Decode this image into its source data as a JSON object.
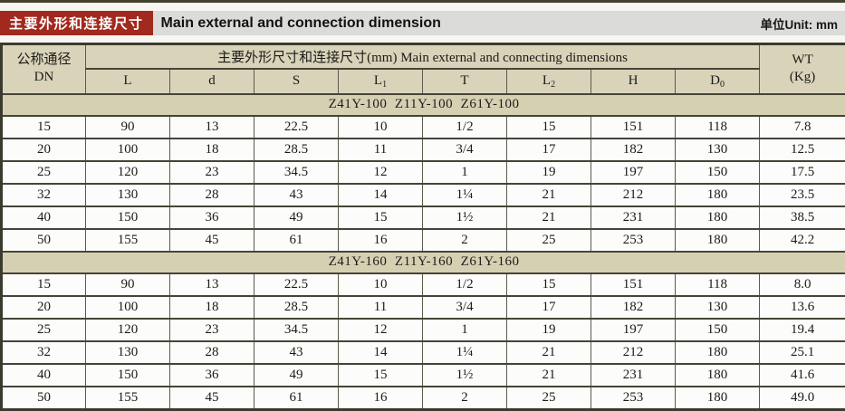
{
  "header": {
    "label_cn": "主要外形和连接尺寸",
    "label_en": "Main external and connection dimension",
    "unit": "单位Unit: mm"
  },
  "table": {
    "dn_header_line1": "公称通径",
    "dn_header_line2": "DN",
    "span_header": "主要外形尺寸和连接尺寸(mm) Main external and connecting dimensions",
    "wt_header_line1": "WT",
    "wt_header_line2": "(Kg)",
    "columns": [
      {
        "label": "L",
        "sub": ""
      },
      {
        "label": "d",
        "sub": ""
      },
      {
        "label": "S",
        "sub": ""
      },
      {
        "label": "L",
        "sub": "1"
      },
      {
        "label": "T",
        "sub": ""
      },
      {
        "label": "L",
        "sub": "2"
      },
      {
        "label": "H",
        "sub": ""
      },
      {
        "label": "D",
        "sub": "0"
      }
    ],
    "groups": [
      {
        "title": "Z41Y-100  Z11Y-100  Z61Y-100",
        "rows": [
          [
            "15",
            "90",
            "13",
            "22.5",
            "10",
            "1/2",
            "15",
            "151",
            "118",
            "7.8"
          ],
          [
            "20",
            "100",
            "18",
            "28.5",
            "11",
            "3/4",
            "17",
            "182",
            "130",
            "12.5"
          ],
          [
            "25",
            "120",
            "23",
            "34.5",
            "12",
            "1",
            "19",
            "197",
            "150",
            "17.5"
          ],
          [
            "32",
            "130",
            "28",
            "43",
            "14",
            "1¼",
            "21",
            "212",
            "180",
            "23.5"
          ],
          [
            "40",
            "150",
            "36",
            "49",
            "15",
            "1½",
            "21",
            "231",
            "180",
            "38.5"
          ],
          [
            "50",
            "155",
            "45",
            "61",
            "16",
            "2",
            "25",
            "253",
            "180",
            "42.2"
          ]
        ]
      },
      {
        "title": "Z41Y-160  Z11Y-160  Z61Y-160",
        "rows": [
          [
            "15",
            "90",
            "13",
            "22.5",
            "10",
            "1/2",
            "15",
            "151",
            "118",
            "8.0"
          ],
          [
            "20",
            "100",
            "18",
            "28.5",
            "11",
            "3/4",
            "17",
            "182",
            "130",
            "13.6"
          ],
          [
            "25",
            "120",
            "23",
            "34.5",
            "12",
            "1",
            "19",
            "197",
            "150",
            "19.4"
          ],
          [
            "32",
            "130",
            "28",
            "43",
            "14",
            "1¼",
            "21",
            "212",
            "180",
            "25.1"
          ],
          [
            "40",
            "150",
            "36",
            "49",
            "15",
            "1½",
            "21",
            "231",
            "180",
            "41.6"
          ],
          [
            "50",
            "155",
            "45",
            "61",
            "16",
            "2",
            "25",
            "253",
            "180",
            "49.0"
          ]
        ]
      }
    ]
  },
  "colors": {
    "accent_red": "#a2291d",
    "title_bar_bg": "#dbdbd9",
    "tan_header": "#d9d3ba",
    "tan_group": "#d6d0b3",
    "row_bg": "#fcfcfa",
    "border_dark": "#3b3a2e",
    "border_mid": "#454437"
  }
}
